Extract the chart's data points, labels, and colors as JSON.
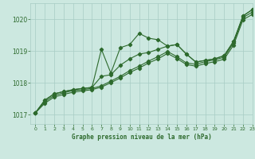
{
  "background_color": "#cce8e0",
  "grid_color": "#a8ccc4",
  "line_color": "#2d6a2d",
  "title": "Graphe pression niveau de la mer (hPa)",
  "xlim": [
    -0.5,
    23
  ],
  "ylim": [
    1016.7,
    1020.5
  ],
  "yticks": [
    1017,
    1018,
    1019,
    1020
  ],
  "xticks": [
    0,
    1,
    2,
    3,
    4,
    5,
    6,
    7,
    8,
    9,
    10,
    11,
    12,
    13,
    14,
    15,
    16,
    17,
    18,
    19,
    20,
    21,
    22,
    23
  ],
  "series": [
    {
      "x": [
        0,
        1,
        2,
        3,
        4,
        5,
        6,
        7,
        8,
        9,
        10,
        11,
        12,
        13,
        14,
        15,
        16,
        17,
        18,
        19,
        20,
        21,
        22,
        23
      ],
      "y": [
        1017.05,
        1017.45,
        1017.65,
        1017.72,
        1017.78,
        1017.82,
        1017.85,
        1019.05,
        1018.3,
        1019.1,
        1019.2,
        1019.55,
        1019.4,
        1019.35,
        1019.15,
        1019.2,
        1018.9,
        1018.65,
        1018.7,
        1018.75,
        1018.85,
        1019.3,
        1020.1,
        1020.3
      ]
    },
    {
      "x": [
        0,
        1,
        2,
        3,
        4,
        5,
        6,
        7,
        8,
        9,
        10,
        11,
        12,
        13,
        14,
        15,
        16,
        17,
        18,
        19,
        20,
        21,
        22,
        23
      ],
      "y": [
        1017.05,
        1017.45,
        1017.65,
        1017.72,
        1017.78,
        1017.82,
        1017.85,
        1018.2,
        1018.25,
        1018.55,
        1018.75,
        1018.9,
        1018.95,
        1019.05,
        1019.15,
        1019.2,
        1018.9,
        1018.65,
        1018.7,
        1018.75,
        1018.85,
        1019.3,
        1020.1,
        1020.3
      ]
    },
    {
      "x": [
        0,
        1,
        2,
        3,
        4,
        5,
        6,
        7,
        8,
        9,
        10,
        11,
        12,
        13,
        14,
        15,
        16,
        17,
        18,
        19,
        20,
        21,
        22,
        23
      ],
      "y": [
        1017.05,
        1017.4,
        1017.6,
        1017.68,
        1017.75,
        1017.78,
        1017.82,
        1017.9,
        1018.05,
        1018.2,
        1018.38,
        1018.52,
        1018.68,
        1018.82,
        1018.98,
        1018.82,
        1018.62,
        1018.58,
        1018.66,
        1018.72,
        1018.8,
        1019.25,
        1020.05,
        1020.22
      ]
    },
    {
      "x": [
        0,
        1,
        2,
        3,
        4,
        5,
        6,
        7,
        8,
        9,
        10,
        11,
        12,
        13,
        14,
        15,
        16,
        17,
        18,
        19,
        20,
        21,
        22,
        23
      ],
      "y": [
        1017.05,
        1017.35,
        1017.55,
        1017.63,
        1017.7,
        1017.74,
        1017.78,
        1017.86,
        1018.0,
        1018.15,
        1018.32,
        1018.46,
        1018.62,
        1018.75,
        1018.92,
        1018.76,
        1018.57,
        1018.52,
        1018.6,
        1018.66,
        1018.74,
        1019.18,
        1019.98,
        1020.15
      ]
    }
  ],
  "figsize": [
    3.2,
    2.0
  ],
  "dpi": 100
}
